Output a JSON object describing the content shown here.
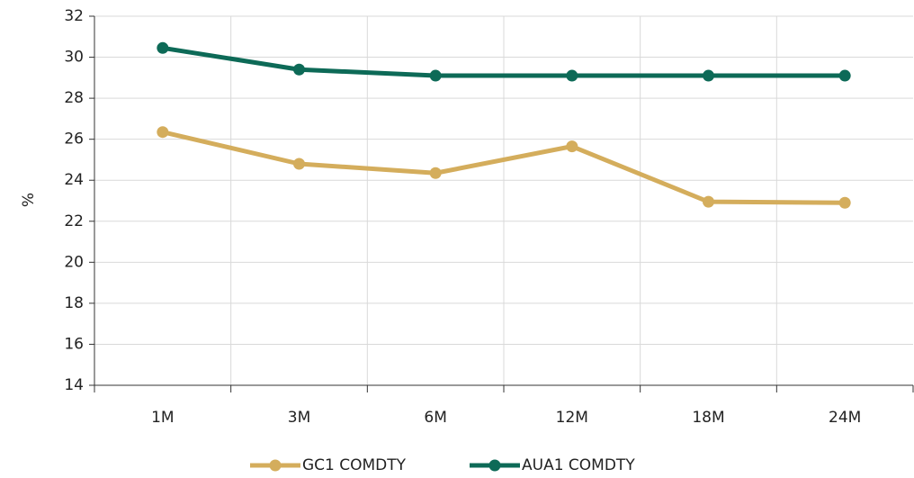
{
  "chart_data": {
    "type": "line",
    "y_label": "%",
    "categories": [
      "1M",
      "3M",
      "6M",
      "12M",
      "18M",
      "24M"
    ],
    "series": [
      {
        "name": "GC1 COMDTY",
        "color": "#d4ad5c",
        "values": [
          26.35,
          24.8,
          24.35,
          25.65,
          22.95,
          22.9
        ]
      },
      {
        "name": "AUA1 COMDTY",
        "color": "#0d6a57",
        "values": [
          30.45,
          29.4,
          29.1,
          29.1,
          29.1,
          29.1
        ]
      }
    ],
    "ylim": [
      14,
      32
    ],
    "yticks": [
      14,
      16,
      18,
      20,
      22,
      24,
      26,
      28,
      30,
      32
    ],
    "grid": true,
    "legend": "bottom"
  }
}
